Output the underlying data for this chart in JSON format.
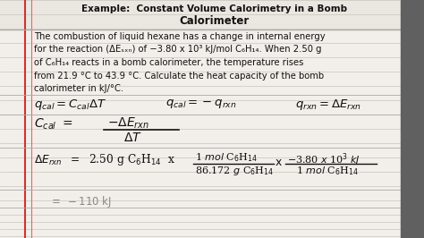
{
  "bg_color": "#e8e5e0",
  "notebook_bg": "#f2efea",
  "dark_right": "#555555",
  "red_line1": "#cc3333",
  "red_line2": "#dd5555",
  "text_color": "#111111",
  "gray_color": "#888888",
  "line_color": "#c8c4be",
  "title1": "Example:  Constant Volume Calorimetry in a Bomb",
  "title2": "Calorimeter",
  "body": [
    "The combustion of liquid hexane has a change in internal energy",
    "for the reaction (ΔEₛₓₙ) of −3.80 x 10³ kJ/mol C₆H₁₄. When 2.50 g",
    "of C₆H₁₄ reacts in a bomb calorimeter, the temperature rises",
    "from 21.9 °C to 43.9 °C. Calculate the heat capacity of the bomb",
    "calorimeter in kJ/°C."
  ],
  "figsize": [
    4.74,
    2.66
  ],
  "dpi": 100
}
